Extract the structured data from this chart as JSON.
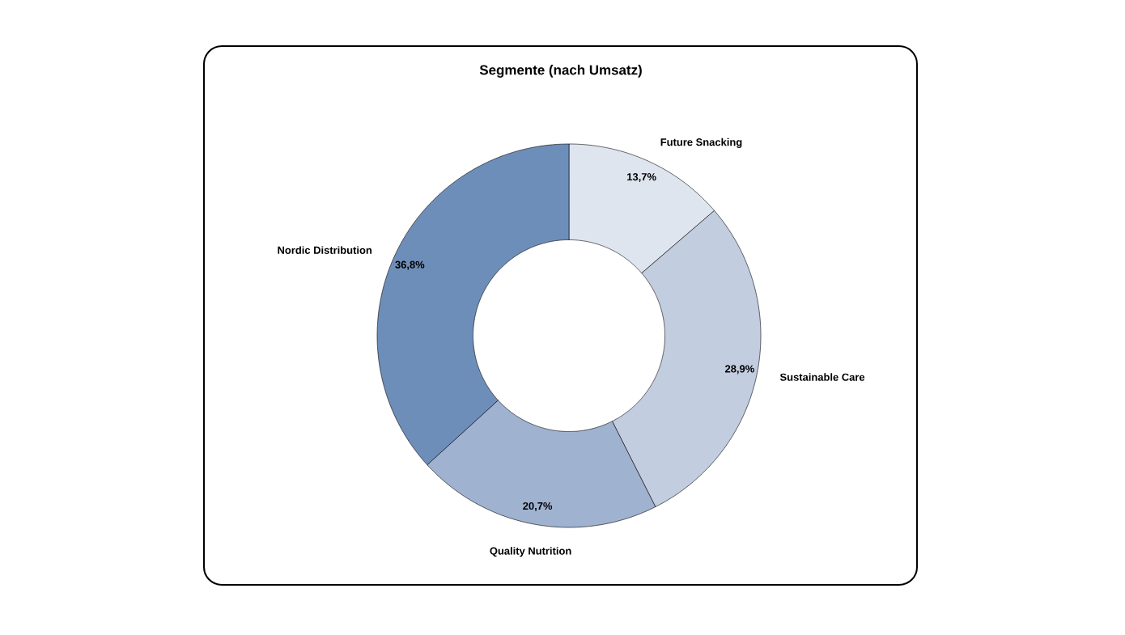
{
  "chart_data": {
    "type": "donut",
    "title": "Segmente (nach Umsatz)",
    "categories": [
      "Future Snacking",
      "Sustainable Care",
      "Quality Nutrition",
      "Nordic Distribution"
    ],
    "values": [
      13.7,
      28.9,
      20.7,
      36.8
    ],
    "value_labels": [
      "13,7%",
      "28,9%",
      "20,7%",
      "36,8%"
    ],
    "colors": [
      "#dfe5ef",
      "#c2cde0",
      "#9fb2d0",
      "#6e8eba"
    ]
  }
}
